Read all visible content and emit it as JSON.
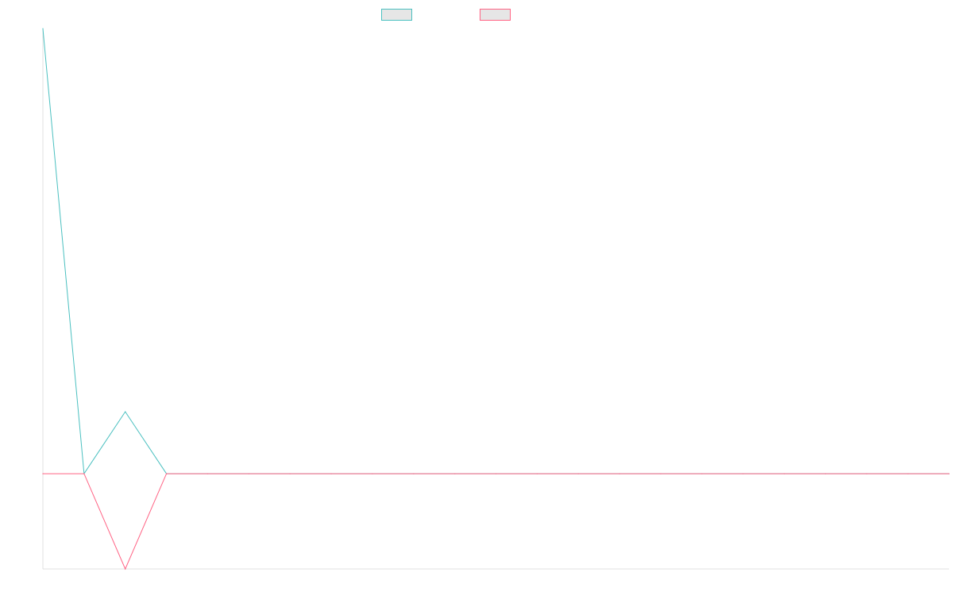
{
  "chart_data": {
    "type": "line",
    "title": "",
    "xlabel": "",
    "ylabel": "",
    "grid": false,
    "legend_position": "top-center",
    "x": [
      0,
      1,
      2,
      3,
      4,
      5,
      6,
      7,
      8,
      9,
      10,
      11,
      12,
      13,
      14,
      15,
      16,
      17,
      18,
      19,
      20,
      21,
      22
    ],
    "ylim": [
      -1,
      4.67
    ],
    "series": [
      {
        "name": "",
        "color": "#4bc0c0",
        "values": [
          4.67,
          0,
          0.65,
          0,
          0,
          0,
          0,
          0,
          0,
          0,
          0,
          0,
          0,
          0,
          0,
          0,
          0,
          0,
          0,
          0,
          0,
          0,
          0
        ]
      },
      {
        "name": "",
        "color": "#ff6384",
        "values": [
          0,
          0,
          -1,
          0,
          0,
          0,
          0,
          0,
          0,
          0,
          0,
          0,
          0,
          0,
          0,
          0,
          0,
          0,
          0,
          0,
          0,
          0,
          0
        ]
      }
    ]
  },
  "colors": {
    "axis": "#e0e0e0",
    "legend_fill": "#e6e6e6"
  }
}
